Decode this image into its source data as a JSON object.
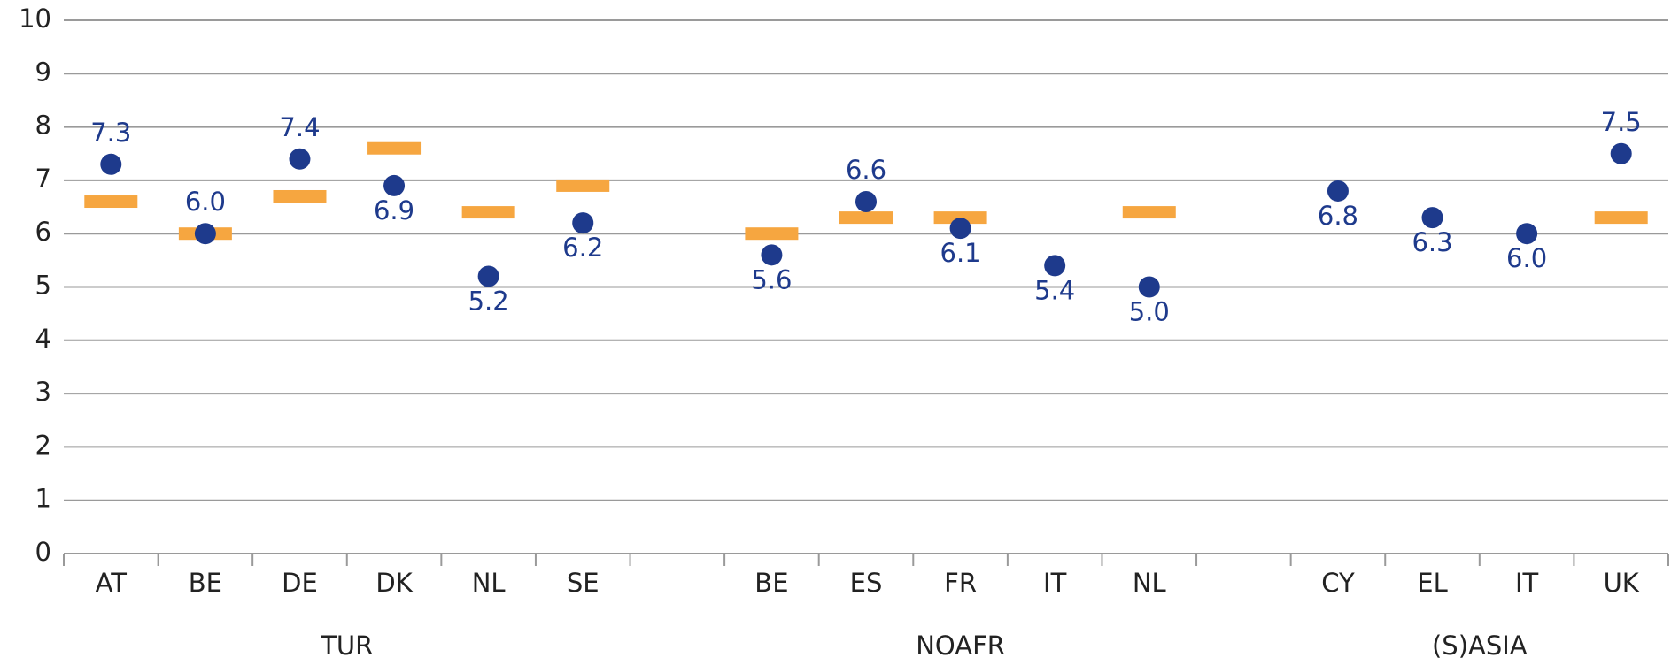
{
  "chart_data": {
    "type": "dot",
    "categories": [
      "AT",
      "BE",
      "DE",
      "DK",
      "NL",
      "SE",
      null,
      "BE",
      "ES",
      "FR",
      "IT",
      "NL",
      null,
      "CY",
      "EL",
      "IT",
      "UK"
    ],
    "groups": [
      "TUR",
      "NOAFR",
      "(S)ASIA"
    ],
    "series": [
      {
        "color": "#f6a640",
        "marker": "dash",
        "values": [
          6.6,
          6.0,
          6.7,
          7.6,
          6.4,
          6.9,
          null,
          6.0,
          6.3,
          6.3,
          null,
          6.4,
          null,
          null,
          null,
          null,
          6.3
        ]
      },
      {
        "color": "#1e3a8c",
        "marker": "dot",
        "values": [
          7.3,
          6.0,
          7.4,
          6.9,
          5.2,
          6.2,
          null,
          5.6,
          6.6,
          6.1,
          5.4,
          5.0,
          null,
          6.8,
          6.3,
          6.0,
          7.5
        ],
        "value_labels": [
          "7.3",
          "6.0",
          "7.4",
          "6.9",
          "5.2",
          "6.2",
          null,
          "5.6",
          "6.6",
          "6.1",
          "5.4",
          "5.0",
          null,
          "6.8",
          "6.3",
          "6.0",
          "7.5"
        ]
      }
    ],
    "ylim": [
      0,
      10
    ],
    "yticks": [
      0,
      1,
      2,
      3,
      4,
      5,
      6,
      7,
      8,
      9,
      10
    ],
    "grid": true
  }
}
